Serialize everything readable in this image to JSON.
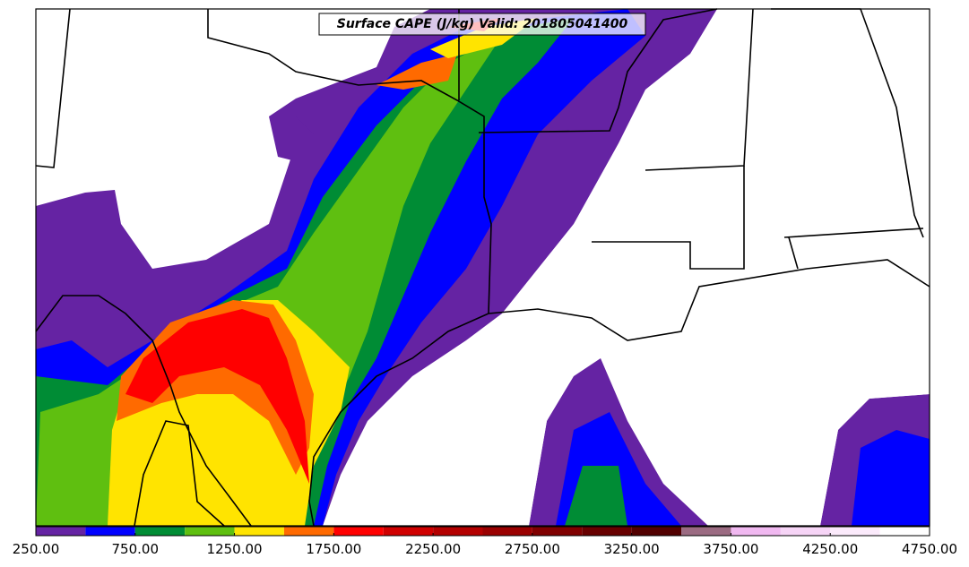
{
  "title": "Surface CAPE (J/kg) Valid: 201805041400",
  "colorbar": {
    "levels": [
      250,
      500,
      750,
      1000,
      1250,
      1500,
      1750,
      2000,
      2250,
      2500,
      2750,
      3000,
      3250,
      3500,
      3750,
      4000,
      4250,
      4500,
      4750
    ],
    "colors": [
      "#6523a3",
      "#0000ff",
      "#008c35",
      "#5fbf10",
      "#ffe400",
      "#ff6a00",
      "#ff0000",
      "#d00000",
      "#b40000",
      "#9a0000",
      "#800000",
      "#680000",
      "#520000",
      "#9b6b82",
      "#f0b8f0",
      "#f6d4f6",
      "#fbeafb",
      "#ffffff"
    ],
    "ticks": [
      {
        "value": 250,
        "label": "250.00"
      },
      {
        "value": 750,
        "label": "750.00"
      },
      {
        "value": 1250,
        "label": "1250.00"
      },
      {
        "value": 1750,
        "label": "1750.00"
      },
      {
        "value": 2250,
        "label": "2250.00"
      },
      {
        "value": 2750,
        "label": "2750.00"
      },
      {
        "value": 3250,
        "label": "3250.00"
      },
      {
        "value": 3750,
        "label": "3750.00"
      },
      {
        "value": 4250,
        "label": "4250.00"
      },
      {
        "value": 4750,
        "label": "4750.00"
      }
    ]
  }
}
